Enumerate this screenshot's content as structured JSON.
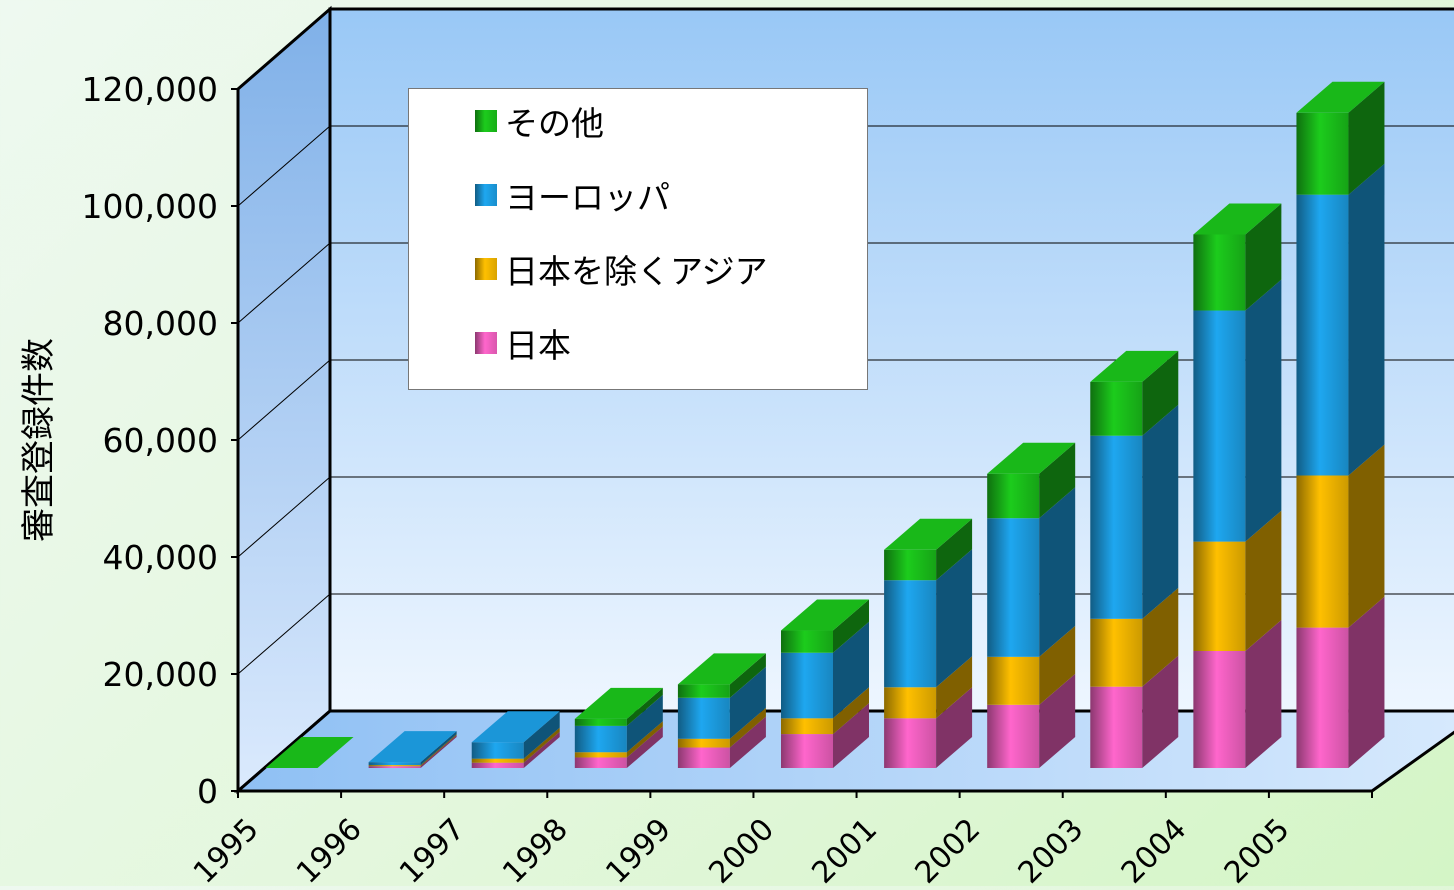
{
  "chart_data": {
    "type": "bar",
    "stacked": true,
    "three_d": true,
    "title": "",
    "xlabel": "",
    "ylabel": "審査登録件数",
    "ylim": [
      0,
      120000
    ],
    "yticks": [
      0,
      20000,
      40000,
      60000,
      80000,
      100000,
      120000
    ],
    "ytick_labels": [
      "0",
      "20,000",
      "40,000",
      "60,000",
      "80,000",
      "100,000",
      "120,000"
    ],
    "categories": [
      "1995",
      "1996",
      "1997",
      "1998",
      "1999",
      "2000",
      "2001",
      "2002",
      "2003",
      "2004",
      "2005"
    ],
    "series": [
      {
        "name": "日本",
        "color": "#ff66cc",
        "values": [
          0,
          300,
          900,
          1800,
          3500,
          5800,
          8500,
          10800,
          13900,
          20000,
          24000
        ]
      },
      {
        "name": "日本を除くアジア",
        "color": "#ffc000",
        "values": [
          0,
          200,
          700,
          900,
          1500,
          2700,
          5300,
          8200,
          11600,
          18700,
          26000
        ]
      },
      {
        "name": "ヨーロッパ",
        "color": "#1ea7f0",
        "values": [
          0,
          500,
          2800,
          4500,
          7000,
          11200,
          18300,
          23700,
          31300,
          39500,
          48000
        ]
      },
      {
        "name": "その他",
        "color": "#1ccc1c",
        "values": [
          0,
          0,
          0,
          1200,
          2300,
          3800,
          5200,
          7600,
          9200,
          13000,
          14000
        ]
      }
    ],
    "legend_order": [
      "その他",
      "ヨーロッパ",
      "日本を除くアジア",
      "日本"
    ],
    "legend_position": "top-left",
    "grid": true
  }
}
